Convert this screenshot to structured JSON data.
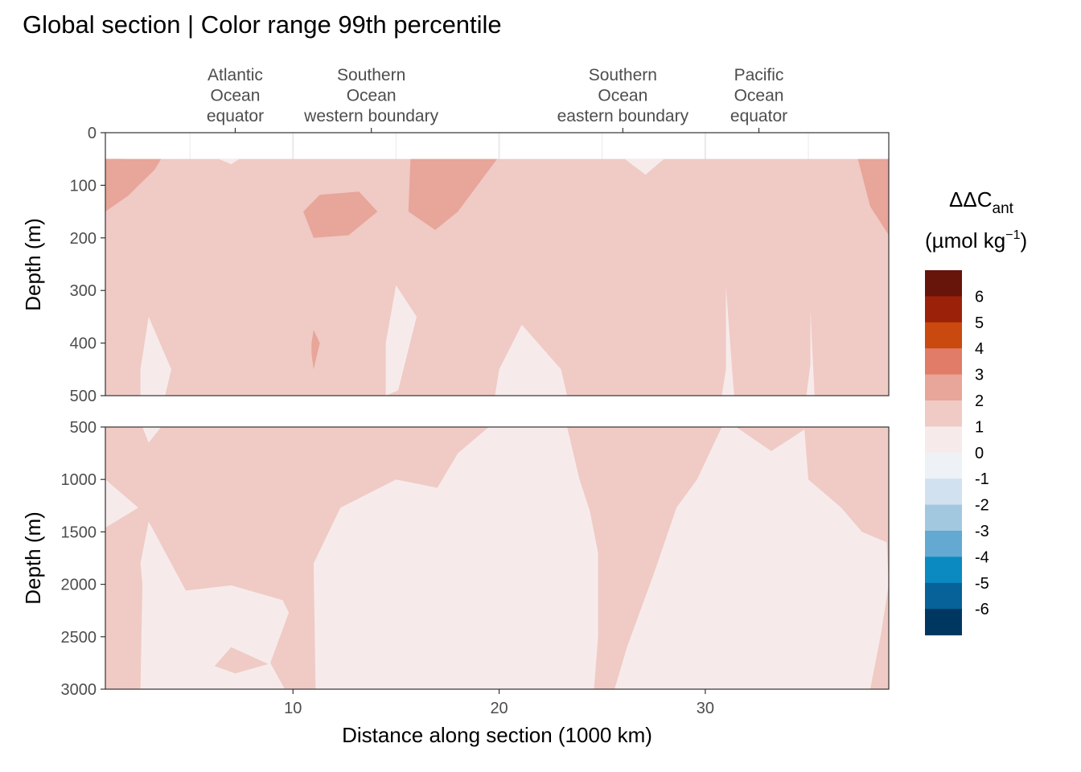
{
  "chart_data": {
    "type": "heatmap",
    "title": "Global section | Color range 99th percentile",
    "xlabel": "Distance along section (1000 km)",
    "ylabel": "Depth (m)",
    "x_range": [
      0.9,
      38.9
    ],
    "x_ticks": [
      10,
      20,
      30
    ],
    "top_labels": [
      {
        "x": 7.2,
        "lines": [
          "Atlantic",
          "Ocean",
          "equator"
        ]
      },
      {
        "x": 13.8,
        "lines": [
          "Southern",
          "Ocean",
          "western boundary"
        ]
      },
      {
        "x": 26.0,
        "lines": [
          "Southern",
          "Ocean",
          "eastern boundary"
        ]
      },
      {
        "x": 32.6,
        "lines": [
          "Pacific",
          "Ocean",
          "equator"
        ]
      }
    ],
    "panels": [
      {
        "name": "upper",
        "ylim": [
          0,
          500
        ],
        "y_ticks": [
          0,
          100,
          200,
          300,
          400,
          500
        ],
        "data_top_depth": 50,
        "background_bin": "1-2",
        "regions": [
          {
            "bin": "3-4",
            "points": [
              [
                0.9,
                50
              ],
              [
                1.8,
                50
              ],
              [
                0.9,
                65
              ]
            ]
          },
          {
            "bin": "2-3",
            "points": [
              [
                0.9,
                50
              ],
              [
                3.6,
                50
              ],
              [
                3.3,
                70
              ],
              [
                2.0,
                120
              ],
              [
                0.9,
                150
              ]
            ]
          },
          {
            "bin": "2-3",
            "points": [
              [
                15.7,
                50
              ],
              [
                19.9,
                50
              ],
              [
                18.0,
                150
              ],
              [
                16.9,
                185
              ],
              [
                15.6,
                150
              ]
            ]
          },
          {
            "bin": "2-3",
            "points": [
              [
                38.9,
                50
              ],
              [
                37.4,
                50
              ],
              [
                38.0,
                140
              ],
              [
                38.9,
                195
              ]
            ]
          },
          {
            "bin": "2-3",
            "points": [
              [
                10.5,
                150
              ],
              [
                11.3,
                118
              ],
              [
                13.2,
                112
              ],
              [
                14.1,
                150
              ],
              [
                12.7,
                195
              ],
              [
                11.0,
                200
              ]
            ]
          },
          {
            "bin": "2-3",
            "points": [
              [
                11.0,
                375
              ],
              [
                11.3,
                400
              ],
              [
                11.0,
                450
              ],
              [
                10.9,
                420
              ],
              [
                10.9,
                400
              ]
            ]
          },
          {
            "bin": "0-1",
            "points": [
              [
                2.6,
                500
              ],
              [
                2.6,
                450
              ],
              [
                3.0,
                350
              ],
              [
                4.1,
                450
              ],
              [
                3.8,
                500
              ]
            ]
          },
          {
            "bin": "0-1",
            "points": [
              [
                14.5,
                500
              ],
              [
                14.5,
                400
              ],
              [
                15.0,
                290
              ],
              [
                16.0,
                350
              ],
              [
                15.1,
                490
              ]
            ]
          },
          {
            "bin": "0-1",
            "points": [
              [
                19.8,
                500
              ],
              [
                20.0,
                450
              ],
              [
                21.1,
                365
              ],
              [
                23.0,
                450
              ],
              [
                23.3,
                500
              ]
            ]
          },
          {
            "bin": "0-1",
            "points": [
              [
                30.8,
                500
              ],
              [
                31.0,
                450
              ],
              [
                31.0,
                290
              ],
              [
                31.3,
                450
              ],
              [
                31.4,
                500
              ]
            ]
          },
          {
            "bin": "0-1",
            "points": [
              [
                34.9,
                500
              ],
              [
                35.1,
                440
              ],
              [
                35.1,
                335
              ],
              [
                35.3,
                500
              ]
            ]
          },
          {
            "bin": "0-1",
            "points": [
              [
                6.4,
                50
              ],
              [
                7.4,
                50
              ],
              [
                7.0,
                60
              ]
            ]
          },
          {
            "bin": "0-1",
            "points": [
              [
                26.1,
                50
              ],
              [
                28.0,
                50
              ],
              [
                27.1,
                80
              ]
            ]
          }
        ]
      },
      {
        "name": "lower",
        "ylim": [
          500,
          3000
        ],
        "y_ticks": [
          500,
          1000,
          1500,
          2000,
          2500,
          3000
        ],
        "background_bin": "1-2",
        "regions": [
          {
            "bin": "0-1",
            "points": [
              [
                0.9,
                1000
              ],
              [
                2.5,
                1270
              ],
              [
                0.9,
                1460
              ]
            ]
          },
          {
            "bin": "0-1",
            "points": [
              [
                2.7,
                500
              ],
              [
                3.6,
                500
              ],
              [
                3.0,
                650
              ]
            ]
          },
          {
            "bin": "0-1",
            "points": [
              [
                2.6,
                3000
              ],
              [
                2.7,
                2000
              ],
              [
                2.6,
                1800
              ],
              [
                3.0,
                1400
              ],
              [
                4.8,
                2060
              ],
              [
                7.0,
                2010
              ],
              [
                9.5,
                2150
              ],
              [
                9.8,
                2270
              ],
              [
                8.9,
                2750
              ],
              [
                9.6,
                3000
              ]
            ]
          },
          {
            "bin": "1-2",
            "points": [
              [
                6.2,
                2780
              ],
              [
                7.0,
                2600
              ],
              [
                8.8,
                2760
              ],
              [
                7.2,
                2850
              ]
            ]
          },
          {
            "bin": "0-1",
            "points": [
              [
                11.1,
                3000
              ],
              [
                11.0,
                1800
              ],
              [
                12.3,
                1270
              ],
              [
                15.0,
                1000
              ],
              [
                17.0,
                1080
              ],
              [
                18.0,
                750
              ],
              [
                19.5,
                500
              ],
              [
                23.3,
                500
              ],
              [
                23.9,
                1000
              ],
              [
                24.4,
                1300
              ],
              [
                24.8,
                1700
              ],
              [
                24.8,
                2500
              ],
              [
                24.6,
                3000
              ]
            ]
          },
          {
            "bin": "0-1",
            "points": [
              [
                25.6,
                3000
              ],
              [
                26.2,
                2600
              ],
              [
                27.5,
                1900
              ],
              [
                28.6,
                1270
              ],
              [
                29.6,
                1000
              ],
              [
                30.8,
                500
              ],
              [
                33.5,
                500
              ],
              [
                34.8,
                500
              ],
              [
                35.0,
                1000
              ],
              [
                36.6,
                1270
              ],
              [
                37.6,
                1500
              ],
              [
                38.8,
                1600
              ],
              [
                38.9,
                2000
              ],
              [
                38.5,
                2500
              ],
              [
                38.0,
                3000
              ]
            ]
          },
          {
            "bin": "1-2",
            "points": [
              [
                31.5,
                500
              ],
              [
                33.2,
                730
              ],
              [
                35.0,
                500
              ]
            ]
          }
        ]
      }
    ],
    "legend": {
      "title": "ΔΔC",
      "title_sub": "ant",
      "unit": "(µmol kg",
      "unit_sup": "−1",
      "unit_close": ")",
      "labels": [
        "6",
        "5",
        "4",
        "3",
        "2",
        "1",
        "0",
        "-1",
        "-2",
        "-3",
        "-4",
        "-5",
        "-6"
      ],
      "bins": [
        {
          "key": "6-7",
          "color": "#67140A"
        },
        {
          "key": "5-6",
          "color": "#9B2208"
        },
        {
          "key": "4-5",
          "color": "#C9490F"
        },
        {
          "key": "3-4",
          "color": "#E07C67"
        },
        {
          "key": "2-3",
          "color": "#E8A599"
        },
        {
          "key": "1-2",
          "color": "#F0CAC5"
        },
        {
          "key": "0-1",
          "color": "#F6EBEA"
        },
        {
          "key": "-1-0",
          "color": "#EEF2F6"
        },
        {
          "key": "-2--1",
          "color": "#D1E1EF"
        },
        {
          "key": "-3--2",
          "color": "#A2C8E0"
        },
        {
          "key": "-4--3",
          "color": "#63A9D1"
        },
        {
          "key": "-5--4",
          "color": "#0A8AC0"
        },
        {
          "key": "-6--5",
          "color": "#066298"
        },
        {
          "key": "-7--6",
          "color": "#003761"
        }
      ]
    }
  }
}
